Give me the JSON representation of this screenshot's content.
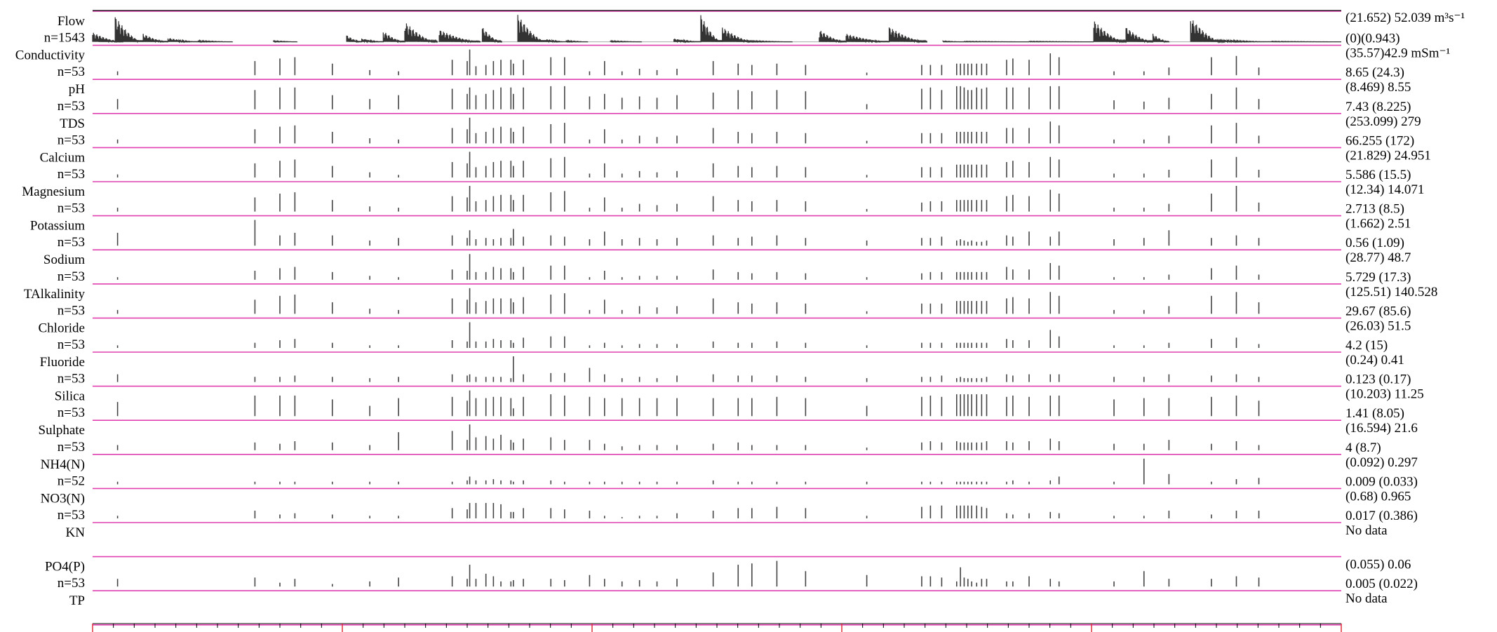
{
  "chart_data": {
    "type": "bar",
    "timeline_segments": 5,
    "ticks_per_segment": 12,
    "panels": [
      {
        "label": "Flow",
        "n": "n=1543",
        "stat_top": "(21.652) 52.039 m³s⁻¹",
        "stat_bottom": "(0)(0.943)",
        "kind": "flow",
        "flow_bursts": [
          [
            0.0,
            0.028,
            0.35
          ],
          [
            0.021,
            0.047,
            0.95
          ],
          [
            0.047,
            0.07,
            0.3
          ],
          [
            0.07,
            0.098,
            0.15
          ],
          [
            0.098,
            0.13,
            0.05
          ],
          [
            0.168,
            0.19,
            0.04
          ],
          [
            0.236,
            0.25,
            0.25
          ],
          [
            0.25,
            0.27,
            0.12
          ],
          [
            0.27,
            0.29,
            0.4
          ],
          [
            0.29,
            0.32,
            0.75
          ],
          [
            0.322,
            0.36,
            0.45
          ],
          [
            0.362,
            0.38,
            0.55
          ],
          [
            0.395,
            0.422,
            1.0
          ],
          [
            0.422,
            0.44,
            0.1
          ],
          [
            0.44,
            0.46,
            0.05
          ],
          [
            0.481,
            0.51,
            0.04
          ],
          [
            0.54,
            0.565,
            0.12
          ],
          [
            0.565,
            0.585,
            1.0
          ],
          [
            0.585,
            0.615,
            0.55
          ],
          [
            0.615,
            0.65,
            0.04
          ],
          [
            0.675,
            0.7,
            0.45
          ],
          [
            0.7,
            0.74,
            0.3
          ],
          [
            0.74,
            0.775,
            0.55
          ],
          [
            0.79,
            0.81,
            0.03
          ],
          [
            0.81,
            0.87,
            0.02
          ],
          [
            0.87,
            0.93,
            0.02
          ],
          [
            0.93,
            0.96,
            0.8
          ],
          [
            0.96,
            0.985,
            0.55
          ],
          [
            0.985,
            1.0,
            0.3
          ],
          [
            1.02,
            1.05,
            0.9
          ],
          [
            1.05,
            1.095,
            0.08
          ],
          [
            1.095,
            1.16,
            0.02
          ]
        ]
      },
      {
        "label": "Conductivity",
        "n": "n=53",
        "stat_top": "(35.57)42.9 mSm⁻¹",
        "stat_bottom": "8.65 (24.3)",
        "values": [
          0.15,
          0.55,
          0.65,
          0.7,
          0.45,
          0.2,
          0.15,
          0.6,
          0.55,
          1.0,
          0.35,
          0.4,
          0.55,
          0.6,
          0.6,
          0.45,
          0.6,
          0.7,
          0.7,
          0.15,
          0.55,
          0.15,
          0.25,
          0.2,
          0.25,
          0.55,
          0.45,
          0.4,
          0.45,
          0.4,
          0.1,
          0.4,
          0.4,
          0.4,
          0.45,
          0.45,
          0.45,
          0.45,
          0.45,
          0.45,
          0.45,
          0.45,
          0.6,
          0.65,
          0.6,
          0.85,
          0.7,
          0.15,
          0.15,
          0.3,
          0.7,
          0.75,
          0.3
        ]
      },
      {
        "label": "pH",
        "n": "n=53",
        "stat_top": "(8.469) 8.55",
        "stat_bottom": "7.43 (8.225)",
        "values": [
          0.4,
          0.75,
          0.85,
          0.85,
          0.55,
          0.4,
          0.55,
          0.8,
          0.6,
          0.85,
          0.55,
          0.6,
          0.75,
          0.85,
          0.85,
          0.6,
          0.85,
          0.9,
          0.9,
          0.5,
          0.6,
          0.45,
          0.5,
          0.45,
          0.55,
          0.65,
          0.75,
          0.7,
          0.75,
          0.7,
          0.2,
          0.8,
          0.85,
          0.75,
          0.9,
          0.9,
          0.85,
          0.75,
          0.75,
          0.85,
          0.8,
          0.85,
          0.85,
          0.85,
          0.85,
          0.9,
          0.9,
          0.35,
          0.3,
          0.45,
          0.6,
          0.85,
          0.4
        ]
      },
      {
        "label": "TDS",
        "n": "n=53",
        "stat_top": "(253.099) 279",
        "stat_bottom": "66.255 (172)",
        "values": [
          0.15,
          0.55,
          0.65,
          0.7,
          0.45,
          0.2,
          0.15,
          0.6,
          0.55,
          1.0,
          0.4,
          0.45,
          0.6,
          0.65,
          0.6,
          0.45,
          0.65,
          0.75,
          0.8,
          0.15,
          0.55,
          0.15,
          0.3,
          0.25,
          0.3,
          0.6,
          0.45,
          0.4,
          0.45,
          0.4,
          0.1,
          0.4,
          0.4,
          0.4,
          0.45,
          0.45,
          0.45,
          0.45,
          0.45,
          0.45,
          0.45,
          0.45,
          0.6,
          0.6,
          0.6,
          0.85,
          0.7,
          0.15,
          0.15,
          0.3,
          0.7,
          0.8,
          0.3
        ]
      },
      {
        "label": "Calcium",
        "n": "n=53",
        "stat_top": "(21.829) 24.951",
        "stat_bottom": "5.586 (15.5)",
        "values": [
          0.12,
          0.55,
          0.65,
          0.7,
          0.45,
          0.2,
          0.1,
          0.6,
          0.55,
          1.0,
          0.4,
          0.45,
          0.6,
          0.65,
          0.65,
          0.45,
          0.65,
          0.75,
          0.8,
          0.15,
          0.55,
          0.15,
          0.25,
          0.2,
          0.25,
          0.55,
          0.45,
          0.4,
          0.45,
          0.4,
          0.1,
          0.4,
          0.4,
          0.4,
          0.5,
          0.5,
          0.5,
          0.5,
          0.5,
          0.5,
          0.5,
          0.5,
          0.6,
          0.65,
          0.6,
          0.8,
          0.7,
          0.15,
          0.15,
          0.3,
          0.7,
          0.8,
          0.3
        ]
      },
      {
        "label": "Magnesium",
        "n": "n=53",
        "stat_top": "(12.34) 14.071",
        "stat_bottom": "2.713 (8.5)",
        "values": [
          0.15,
          0.55,
          0.7,
          0.75,
          0.45,
          0.2,
          0.15,
          0.6,
          0.55,
          1.0,
          0.4,
          0.45,
          0.6,
          0.65,
          0.65,
          0.45,
          0.65,
          0.75,
          0.8,
          0.15,
          0.55,
          0.15,
          0.3,
          0.25,
          0.3,
          0.6,
          0.45,
          0.4,
          0.45,
          0.4,
          0.1,
          0.35,
          0.4,
          0.4,
          0.45,
          0.45,
          0.45,
          0.45,
          0.45,
          0.45,
          0.45,
          0.45,
          0.6,
          0.65,
          0.6,
          0.85,
          0.7,
          0.15,
          0.15,
          0.3,
          0.7,
          1.0,
          0.35
        ]
      },
      {
        "label": "Potassium",
        "n": "n=53",
        "stat_top": "(1.662) 2.51",
        "stat_bottom": "0.56 (1.09)",
        "values": [
          0.5,
          1.0,
          0.4,
          0.5,
          0.4,
          0.2,
          0.3,
          0.4,
          0.3,
          0.6,
          0.25,
          0.3,
          0.25,
          0.3,
          0.3,
          0.65,
          0.35,
          0.4,
          0.35,
          0.25,
          0.55,
          0.25,
          0.3,
          0.25,
          0.3,
          0.4,
          0.3,
          0.35,
          0.4,
          0.3,
          0.2,
          0.3,
          0.3,
          0.35,
          0.2,
          0.25,
          0.2,
          0.15,
          0.2,
          0.15,
          0.15,
          0.2,
          0.4,
          0.35,
          0.55,
          0.35,
          0.55,
          0.25,
          0.3,
          0.6,
          0.3,
          0.4,
          0.3
        ]
      },
      {
        "label": "Sodium",
        "n": "n=53",
        "stat_top": "(28.77) 48.7",
        "stat_bottom": "5.729 (17.3)",
        "values": [
          0.1,
          0.35,
          0.45,
          0.5,
          0.3,
          0.15,
          0.1,
          0.4,
          0.35,
          1.0,
          0.3,
          0.3,
          0.5,
          0.45,
          0.45,
          0.3,
          0.5,
          0.55,
          0.55,
          0.1,
          0.35,
          0.1,
          0.15,
          0.15,
          0.15,
          0.4,
          0.3,
          0.25,
          0.3,
          0.25,
          0.1,
          0.25,
          0.3,
          0.3,
          0.3,
          0.3,
          0.3,
          0.3,
          0.3,
          0.3,
          0.3,
          0.3,
          0.5,
          0.4,
          0.4,
          0.65,
          0.55,
          0.1,
          0.1,
          0.2,
          0.45,
          0.55,
          0.2
        ]
      },
      {
        "label": "TAlkalinity",
        "n": "n=53",
        "stat_top": "(125.51) 140.528",
        "stat_bottom": "29.67 (85.6)",
        "values": [
          0.15,
          0.55,
          0.7,
          0.75,
          0.45,
          0.2,
          0.15,
          0.6,
          0.55,
          1.0,
          0.45,
          0.5,
          0.6,
          0.6,
          0.6,
          0.45,
          0.65,
          0.75,
          0.8,
          0.15,
          0.55,
          0.15,
          0.3,
          0.25,
          0.3,
          0.6,
          0.45,
          0.4,
          0.45,
          0.4,
          0.1,
          0.4,
          0.4,
          0.4,
          0.5,
          0.5,
          0.5,
          0.5,
          0.5,
          0.5,
          0.5,
          0.5,
          0.6,
          0.65,
          0.6,
          0.85,
          0.7,
          0.15,
          0.15,
          0.3,
          0.7,
          0.85,
          0.45
        ]
      },
      {
        "label": "Chloride",
        "n": "n=53",
        "stat_top": "(26.03) 51.5",
        "stat_bottom": "4.2 (15)",
        "values": [
          0.1,
          0.2,
          0.3,
          0.35,
          0.2,
          0.1,
          0.1,
          0.3,
          0.25,
          1.0,
          0.25,
          0.25,
          0.35,
          0.3,
          0.3,
          0.2,
          0.4,
          0.45,
          0.45,
          0.1,
          0.2,
          0.1,
          0.15,
          0.15,
          0.15,
          0.25,
          0.2,
          0.2,
          0.25,
          0.2,
          0.1,
          0.2,
          0.2,
          0.2,
          0.2,
          0.2,
          0.2,
          0.2,
          0.2,
          0.2,
          0.2,
          0.2,
          0.35,
          0.3,
          0.3,
          0.7,
          0.45,
          0.1,
          0.1,
          0.2,
          0.35,
          0.4,
          0.15
        ]
      },
      {
        "label": "Fluoride",
        "n": "n=53",
        "stat_top": "(0.24) 0.41",
        "stat_bottom": "0.123 (0.17)",
        "values": [
          0.3,
          0.2,
          0.2,
          0.25,
          0.2,
          0.15,
          0.2,
          0.3,
          0.25,
          0.3,
          0.2,
          0.2,
          0.2,
          0.2,
          0.15,
          1.0,
          0.3,
          0.35,
          0.35,
          0.55,
          0.3,
          0.15,
          0.2,
          0.15,
          0.25,
          0.3,
          0.25,
          0.25,
          0.25,
          0.2,
          0.15,
          0.2,
          0.2,
          0.25,
          0.15,
          0.2,
          0.15,
          0.15,
          0.15,
          0.15,
          0.15,
          0.2,
          0.3,
          0.25,
          0.3,
          0.3,
          0.3,
          0.2,
          0.2,
          0.3,
          0.25,
          0.3,
          0.2
        ]
      },
      {
        "label": "Silica",
        "n": "n=53",
        "stat_top": "(10.203) 11.25",
        "stat_bottom": "1.41 (8.05)",
        "values": [
          0.55,
          0.8,
          0.8,
          0.8,
          0.65,
          0.4,
          0.7,
          0.75,
          0.6,
          1.0,
          0.7,
          0.7,
          0.75,
          0.75,
          0.7,
          0.3,
          0.75,
          0.85,
          0.8,
          0.75,
          0.7,
          0.7,
          0.7,
          0.7,
          0.7,
          0.7,
          0.7,
          0.7,
          0.75,
          0.7,
          0.4,
          0.75,
          0.8,
          0.75,
          0.85,
          0.85,
          0.85,
          0.85,
          0.85,
          0.85,
          0.85,
          0.85,
          0.75,
          0.8,
          0.75,
          0.8,
          0.8,
          0.65,
          0.7,
          0.7,
          0.75,
          0.8,
          0.6
        ]
      },
      {
        "label": "Sulphate",
        "n": "n=53",
        "stat_top": "(16.594) 21.6",
        "stat_bottom": "4 (8.7)",
        "values": [
          0.2,
          0.3,
          0.25,
          0.35,
          0.3,
          0.2,
          0.7,
          0.75,
          0.4,
          1.0,
          0.5,
          0.55,
          0.45,
          0.6,
          0.4,
          0.3,
          0.45,
          0.5,
          0.4,
          0.4,
          0.25,
          0.15,
          0.2,
          0.2,
          0.2,
          0.25,
          0.3,
          0.2,
          0.2,
          0.2,
          0.1,
          0.3,
          0.35,
          0.3,
          0.35,
          0.3,
          0.3,
          0.3,
          0.3,
          0.3,
          0.3,
          0.35,
          0.35,
          0.3,
          0.35,
          0.45,
          0.35,
          0.25,
          0.25,
          0.4,
          0.25,
          0.35,
          0.2
        ]
      },
      {
        "label": "NH4(N)",
        "n": "n=52",
        "stat_top": "(0.092) 0.297",
        "stat_bottom": "0.009 (0.033)",
        "values": [
          0.1,
          0.1,
          0.1,
          0.1,
          0.1,
          0.1,
          0.1,
          0.1,
          0.15,
          0.3,
          0.15,
          0.15,
          0.2,
          0.15,
          0.15,
          0.1,
          0.15,
          0.15,
          0.1,
          0.1,
          0.1,
          0.1,
          0.1,
          0.1,
          0.1,
          0.15,
          0.1,
          0.1,
          0.1,
          0.1,
          0.1,
          0.1,
          0.1,
          0.1,
          0.1,
          0.1,
          0.1,
          0.1,
          0.1,
          0.1,
          0.1,
          0.1,
          0.1,
          0.15,
          0.1,
          0.15,
          0.3,
          0.1,
          1.0,
          0.4,
          0.1,
          0.2,
          0.25
        ]
      },
      {
        "label": "NO3(N)",
        "n": "n=53",
        "stat_top": "(0.68) 0.965",
        "stat_bottom": "0.017 (0.386)",
        "values": [
          0.1,
          0.3,
          0.15,
          0.2,
          0.15,
          0.1,
          0.1,
          0.4,
          0.35,
          0.6,
          0.6,
          0.6,
          0.6,
          0.55,
          0.25,
          0.25,
          0.4,
          0.4,
          0.35,
          0.3,
          0.1,
          0.05,
          0.1,
          0.1,
          0.2,
          0.3,
          0.4,
          0.4,
          0.45,
          0.4,
          0.1,
          0.45,
          0.5,
          0.5,
          0.5,
          0.5,
          0.5,
          0.5,
          0.5,
          0.5,
          0.45,
          0.4,
          0.2,
          0.15,
          0.2,
          0.25,
          0.2,
          0.1,
          0.1,
          0.3,
          0.15,
          0.3,
          0.3
        ]
      },
      {
        "label": "KN",
        "n": "",
        "stat_top": "No data",
        "stat_bottom": "",
        "nodata": true,
        "values": []
      },
      {
        "label": "PO4(P)",
        "n": "n=53",
        "stat_top": "(0.055) 0.06",
        "stat_bottom": "0.005 (0.022)",
        "values": [
          0.3,
          0.35,
          0.15,
          0.3,
          0.1,
          0.2,
          0.35,
          0.4,
          0.3,
          0.85,
          0.3,
          0.5,
          0.4,
          0.2,
          0.2,
          0.25,
          0.3,
          0.3,
          0.25,
          0.45,
          0.3,
          0.2,
          0.25,
          0.2,
          0.3,
          0.55,
          0.85,
          0.9,
          1.0,
          0.6,
          0.45,
          0.4,
          0.4,
          0.35,
          0.2,
          0.75,
          0.35,
          0.3,
          0.2,
          0.15,
          0.3,
          0.3,
          0.2,
          0.2,
          0.4,
          0.3,
          0.2,
          0.2,
          0.6,
          0.3,
          0.3,
          0.4,
          0.35
        ]
      },
      {
        "label": "TP",
        "n": "",
        "stat_top": "No data",
        "stat_bottom": "",
        "nodata": true,
        "values": []
      }
    ],
    "sample_positions": [
      0.02,
      0.13,
      0.15,
      0.162,
      0.192,
      0.222,
      0.245,
      0.288,
      0.3,
      0.302,
      0.307,
      0.315,
      0.321,
      0.327,
      0.335,
      0.337,
      0.345,
      0.367,
      0.378,
      0.398,
      0.41,
      0.424,
      0.438,
      0.452,
      0.468,
      0.497,
      0.517,
      0.528,
      0.548,
      0.571,
      0.62,
      0.664,
      0.671,
      0.68,
      0.692,
      0.695,
      0.698,
      0.701,
      0.704,
      0.708,
      0.712,
      0.716,
      0.732,
      0.737,
      0.75,
      0.767,
      0.774,
      0.818,
      0.842,
      0.862,
      0.896,
      0.916,
      0.934
    ]
  }
}
